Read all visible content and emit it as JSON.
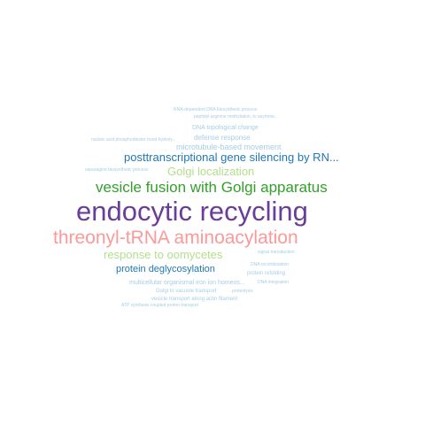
{
  "words": [
    {
      "text": "endocytic recycling",
      "color": "#6a3d9a"
    },
    {
      "text": "threonyl-tRNA aminoacylation",
      "color": "#fb9a99"
    },
    {
      "text": "vesicle fusion with Golgi apparatus",
      "color": "#33a02c"
    },
    {
      "text": "posttranscriptional gene silencing by RN...",
      "color": "#1f78b4"
    },
    {
      "text": "Golgi localization",
      "color": "#b2df8a"
    },
    {
      "text": "response to oomycetes",
      "color": "#b2df8a"
    },
    {
      "text": "protein deglycosylation",
      "color": "#1f78b4"
    },
    {
      "text": "microtubule-based movement",
      "color": "#a6cee3"
    },
    {
      "text": "defense response",
      "color": "#a6cee3"
    },
    {
      "text": "DNA topological change",
      "color": "#a6cee3"
    },
    {
      "text": "multicellular organismal iron ion homeos...",
      "color": "#a6cee3"
    },
    {
      "text": "Golgi to vacuole transport",
      "color": "#a6cee3"
    },
    {
      "text": "vesicle transport along actin filament",
      "color": "#a6cee3"
    },
    {
      "text": "protein refolding",
      "color": "#a6cee3"
    },
    {
      "text": "DNA recombination",
      "color": "#a6cee3"
    },
    {
      "text": "DNA integration",
      "color": "#a6cee3"
    },
    {
      "text": "signal transduction",
      "color": "#a6cee3"
    },
    {
      "text": "proteolysis",
      "color": "#a6cee3"
    },
    {
      "text": "ATP synthesis coupled proton transport",
      "color": "#a6cee3"
    },
    {
      "text": "nucleic acid phosphodiester bond hydroly...",
      "color": "#a6cee3"
    },
    {
      "text": "asparagine biosynthetic process",
      "color": "#a6cee3"
    },
    {
      "text": "peptidyl-arginine methylation, to asymme...",
      "color": "#a6cee3"
    },
    {
      "text": "RNA-dependent DNA biosynthetic process",
      "color": "#a6cee3"
    }
  ]
}
